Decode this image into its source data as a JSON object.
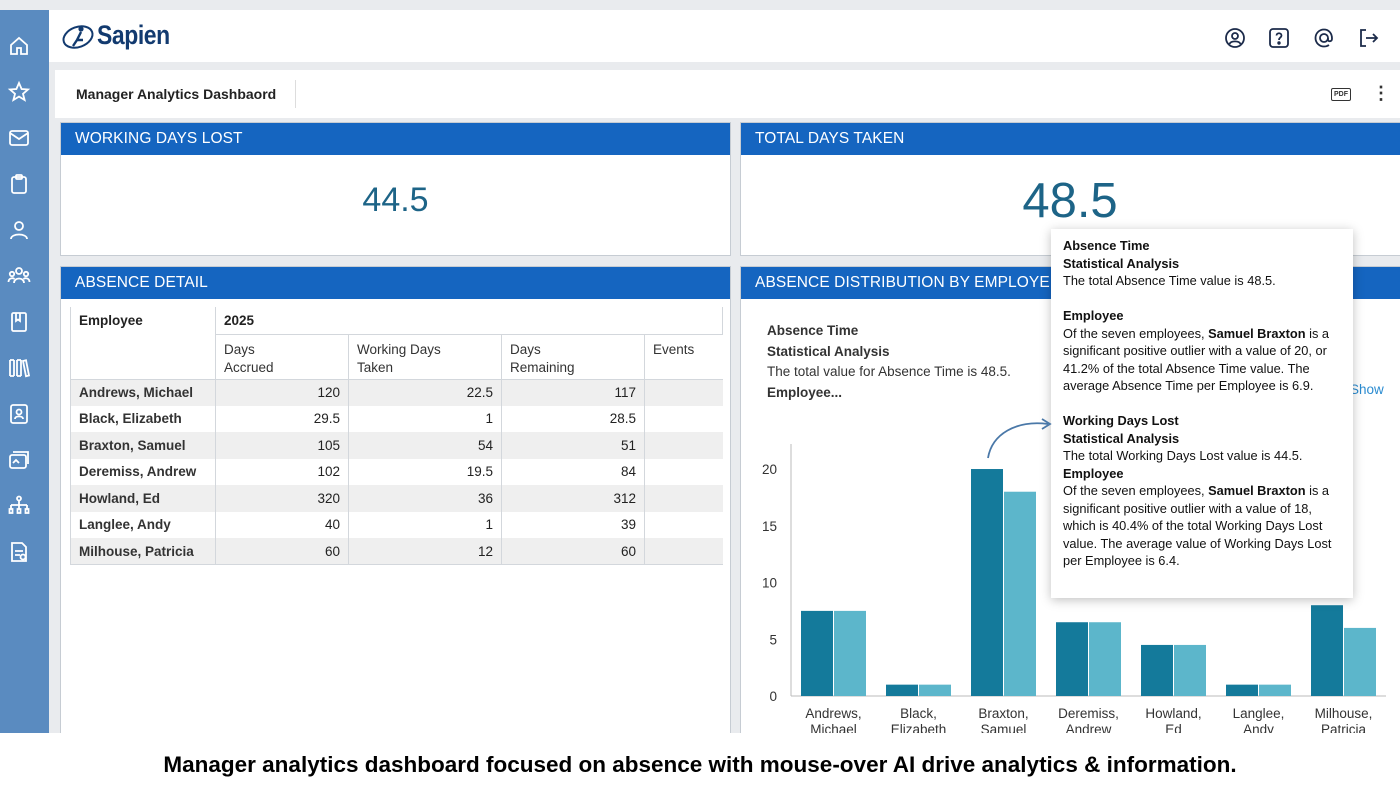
{
  "app": {
    "logo_text": "Sapien"
  },
  "sidebar": {
    "icons": [
      "home-icon",
      "star-icon",
      "mail-icon",
      "clipboard-icon",
      "person-icon",
      "team-icon",
      "book-icon",
      "library-icon",
      "id-badge-icon",
      "gallery-icon",
      "org-chart-icon",
      "document-check-icon"
    ]
  },
  "topbar": {
    "icons": [
      "user-circle-icon",
      "help-icon",
      "at-sign-icon",
      "logout-icon"
    ]
  },
  "page": {
    "title": "Manager Analytics Dashbaord",
    "pdf_label": "PDF",
    "more_label": "⋮"
  },
  "kpis": {
    "working_days_lost": {
      "title": "WORKING DAYS LOST",
      "value": "44.5"
    },
    "total_days_taken": {
      "title": "TOTAL DAYS TAKEN",
      "value": "48.5"
    }
  },
  "absence_detail": {
    "title": "ABSENCE DETAIL",
    "year": "2025",
    "col_employee": "Employee",
    "columns": [
      "Days Accrued",
      "Working Days Taken",
      "Days Remaining",
      "Events"
    ],
    "columns_lines": [
      [
        "Days",
        "Accrued"
      ],
      [
        "Working Days",
        "Taken"
      ],
      [
        "Days",
        "Remaining"
      ],
      [
        "Events"
      ]
    ],
    "rows": [
      {
        "name": "Andrews, Michael",
        "accrued": "120",
        "taken": "22.5",
        "remaining": "117",
        "events": ""
      },
      {
        "name": "Black, Elizabeth",
        "accrued": "29.5",
        "taken": "1",
        "remaining": "28.5",
        "events": ""
      },
      {
        "name": "Braxton, Samuel",
        "accrued": "105",
        "taken": "54",
        "remaining": "51",
        "events": ""
      },
      {
        "name": "Deremiss, Andrew",
        "accrued": "102",
        "taken": "19.5",
        "remaining": "84",
        "events": ""
      },
      {
        "name": "Howland, Ed",
        "accrued": "320",
        "taken": "36",
        "remaining": "312",
        "events": ""
      },
      {
        "name": "Langlee, Andy",
        "accrued": "40",
        "taken": "1",
        "remaining": "39",
        "events": ""
      },
      {
        "name": "Milhouse, Patricia",
        "accrued": "60",
        "taken": "12",
        "remaining": "60",
        "events": ""
      }
    ]
  },
  "distribution": {
    "title": "ABSENCE DISTRIBUTION BY EMPLOYEE",
    "summary_l1": "Absence Time",
    "summary_l2": "Statistical Analysis",
    "summary_l3": "The total value for Absence Time is 48.5.",
    "summary_l4": "Employee...",
    "show_link": "Show"
  },
  "chart_data": {
    "type": "bar",
    "categories": [
      [
        "Andrews,",
        "Michael"
      ],
      [
        "Black,",
        "Elizabeth"
      ],
      [
        "Braxton,",
        "Samuel"
      ],
      [
        "Deremiss,",
        "Andrew"
      ],
      [
        "Howland,",
        "Ed"
      ],
      [
        "Langlee,",
        "Andy"
      ],
      [
        "Milhouse,",
        "Patricia"
      ]
    ],
    "series": [
      {
        "values": [
          7.5,
          1,
          20,
          6.5,
          4.5,
          1,
          8
        ],
        "color": "#147a9b"
      },
      {
        "values": [
          7.5,
          1,
          18,
          6.5,
          4.5,
          1,
          6
        ],
        "color": "#5cb6cb"
      }
    ],
    "y_ticks": [
      0,
      5,
      10,
      15,
      20
    ],
    "ylim": [
      0,
      21.5
    ],
    "title": "",
    "xlabel": "",
    "ylabel": ""
  },
  "tooltip": {
    "a_title": "Absence Time",
    "a_sub": "Statistical Analysis",
    "a_total": "The total Absence Time value is 48.5.",
    "a_emp_title": "Employee",
    "a_emp_pre": "Of the seven employees, ",
    "a_emp_name": "Samuel Braxton",
    "a_emp_post": " is a significant positive outlier with a value of 20, or 41.2% of the total Absence Time value. The average Absence Time per Employee is 6.9.",
    "w_title": "Working Days Lost",
    "w_sub": "Statistical Analysis",
    "w_total": "The total Working Days Lost value is 44.5.",
    "w_emp_title": "Employee",
    "w_emp_pre": "Of the seven employees, ",
    "w_emp_name": "Samuel Braxton",
    "w_emp_post": " is a significant positive outlier with a value of 18, which is 40.4% of the total Working Days Lost value. The average value of Working Days Lost per Employee is 6.4."
  },
  "caption": "Manager analytics dashboard focused on absence with mouse-over AI drive analytics & information."
}
